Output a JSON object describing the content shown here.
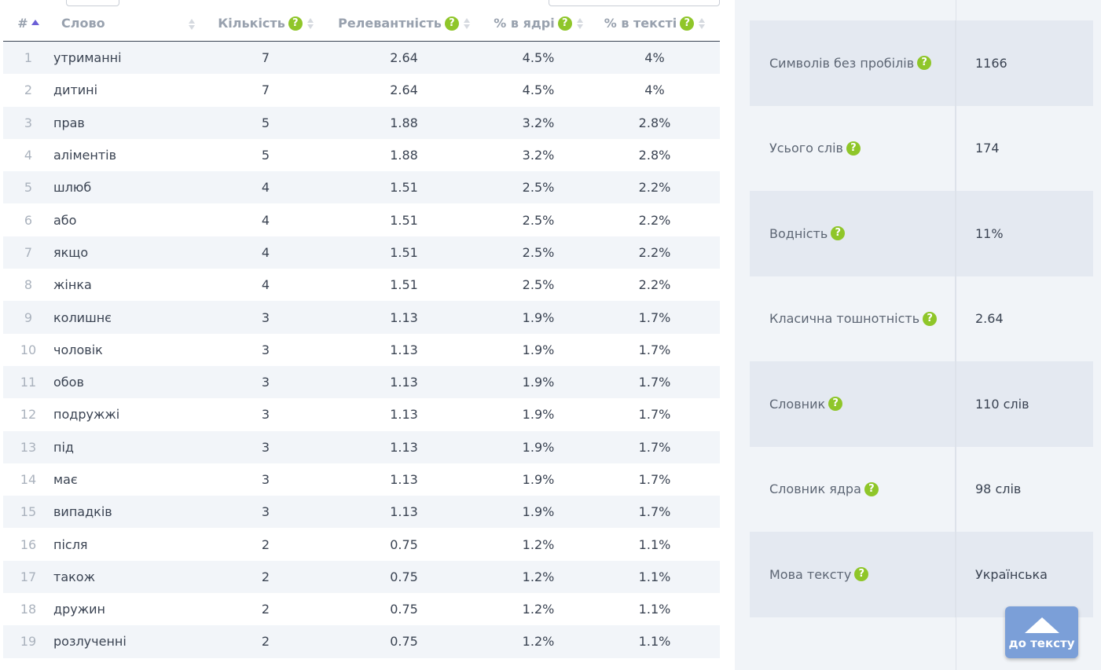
{
  "table": {
    "headers": {
      "num": "#",
      "word": "Слово",
      "count": "Кількість",
      "relevance": "Релевантність",
      "core": "% в ядрі",
      "text": "% в тексті"
    },
    "rows": [
      {
        "n": "1",
        "word": "утриманні",
        "count": "7",
        "rel": "2.64",
        "core": "4.5%",
        "text": "4%"
      },
      {
        "n": "2",
        "word": "дитині",
        "count": "7",
        "rel": "2.64",
        "core": "4.5%",
        "text": "4%"
      },
      {
        "n": "3",
        "word": "прав",
        "count": "5",
        "rel": "1.88",
        "core": "3.2%",
        "text": "2.8%"
      },
      {
        "n": "4",
        "word": "аліментів",
        "count": "5",
        "rel": "1.88",
        "core": "3.2%",
        "text": "2.8%"
      },
      {
        "n": "5",
        "word": "шлюб",
        "count": "4",
        "rel": "1.51",
        "core": "2.5%",
        "text": "2.2%"
      },
      {
        "n": "6",
        "word": "або",
        "count": "4",
        "rel": "1.51",
        "core": "2.5%",
        "text": "2.2%"
      },
      {
        "n": "7",
        "word": "якщо",
        "count": "4",
        "rel": "1.51",
        "core": "2.5%",
        "text": "2.2%"
      },
      {
        "n": "8",
        "word": "жінка",
        "count": "4",
        "rel": "1.51",
        "core": "2.5%",
        "text": "2.2%"
      },
      {
        "n": "9",
        "word": "колишнє",
        "count": "3",
        "rel": "1.13",
        "core": "1.9%",
        "text": "1.7%"
      },
      {
        "n": "10",
        "word": "чоловік",
        "count": "3",
        "rel": "1.13",
        "core": "1.9%",
        "text": "1.7%"
      },
      {
        "n": "11",
        "word": "обов",
        "count": "3",
        "rel": "1.13",
        "core": "1.9%",
        "text": "1.7%"
      },
      {
        "n": "12",
        "word": "подружжі",
        "count": "3",
        "rel": "1.13",
        "core": "1.9%",
        "text": "1.7%"
      },
      {
        "n": "13",
        "word": "під",
        "count": "3",
        "rel": "1.13",
        "core": "1.9%",
        "text": "1.7%"
      },
      {
        "n": "14",
        "word": "має",
        "count": "3",
        "rel": "1.13",
        "core": "1.9%",
        "text": "1.7%"
      },
      {
        "n": "15",
        "word": "випадків",
        "count": "3",
        "rel": "1.13",
        "core": "1.9%",
        "text": "1.7%"
      },
      {
        "n": "16",
        "word": "після",
        "count": "2",
        "rel": "0.75",
        "core": "1.2%",
        "text": "1.1%"
      },
      {
        "n": "17",
        "word": "також",
        "count": "2",
        "rel": "0.75",
        "core": "1.2%",
        "text": "1.1%"
      },
      {
        "n": "18",
        "word": "дружин",
        "count": "2",
        "rel": "0.75",
        "core": "1.2%",
        "text": "1.1%"
      },
      {
        "n": "19",
        "word": "розлученні",
        "count": "2",
        "rel": "0.75",
        "core": "1.2%",
        "text": "1.1%"
      }
    ]
  },
  "stats": [
    {
      "label": "Символів без пробілів",
      "value": "1166"
    },
    {
      "label": "Усього слів",
      "value": "174"
    },
    {
      "label": "Водність",
      "value": "11%"
    },
    {
      "label": "Класична тошнотність",
      "value": "2.64"
    },
    {
      "label": "Словник",
      "value": "110 слів"
    },
    {
      "label": "Словник ядра",
      "value": "98 слів"
    },
    {
      "label": "Мова тексту",
      "value": "Українська"
    }
  ],
  "help_glyph": "?",
  "to_text_button": {
    "label": "до тексту",
    "icon": "arrow-up-icon"
  },
  "colors": {
    "help": "#8fc629",
    "accent": "#6b5fd6",
    "button": "#7b9fd8"
  }
}
